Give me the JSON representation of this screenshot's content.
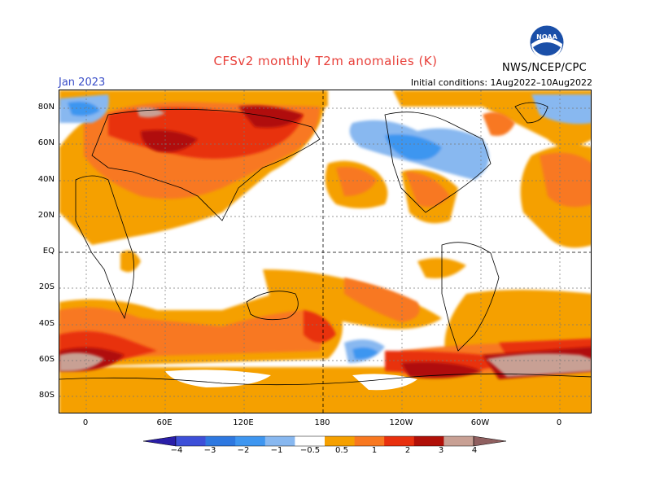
{
  "title": "CFSv2 monthly T2m anomalies (K)",
  "valid_month": "Jan 2023",
  "initial_conditions": "Initial conditions: 1Aug2022–10Aug2022",
  "organization": "NWS/NCEP/CPC",
  "logo_text": "NOAA",
  "lat_labels": [
    "80N",
    "60N",
    "40N",
    "20N",
    "EQ",
    "20S",
    "40S",
    "60S",
    "80S"
  ],
  "lon_labels": [
    "0",
    "60E",
    "120E",
    "180",
    "120W",
    "60W",
    "0"
  ],
  "colorbar": {
    "labels": [
      "−4",
      "−3",
      "−2",
      "−1",
      "−0.5",
      "0.5",
      "1",
      "2",
      "3",
      "4"
    ],
    "colors": [
      "#2a1ea8",
      "#3d4fd8",
      "#2e78e0",
      "#3e96f0",
      "#88b8f0",
      "#ffffff",
      "#f5a000",
      "#f87820",
      "#e8300e",
      "#b01008",
      "#c8a094",
      "#906060"
    ]
  }
}
